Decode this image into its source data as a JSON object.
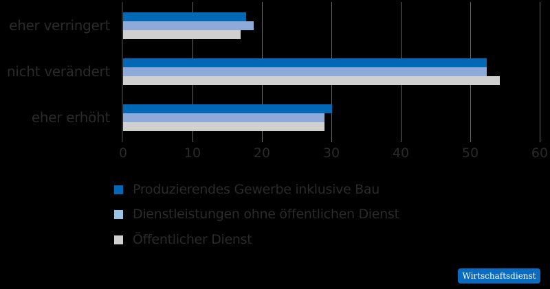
{
  "chart_data": {
    "type": "bar",
    "orientation": "horizontal",
    "categories": [
      "eher verringert",
      "nicht verändert",
      "eher erhöht"
    ],
    "series": [
      {
        "name": "Produzierendes Gewerbe inklusive Bau",
        "color": "#0068b4",
        "values": [
          17.7,
          52.4,
          30.1
        ]
      },
      {
        "name": "Dienstleistungen ohne öffentlichen Dienst",
        "color": "#8eaad9",
        "values": [
          18.8,
          52.4,
          29.0
        ]
      },
      {
        "name": "Öffentlicher Dienst",
        "color": "#d0d0d0",
        "values": [
          16.9,
          54.3,
          29.0
        ]
      }
    ],
    "xlim": [
      0,
      60
    ],
    "xticks": [
      "0",
      "10",
      "20",
      "30",
      "40",
      "50",
      "60"
    ],
    "grid": true,
    "legend_position": "bottom",
    "title": "",
    "xlabel": "",
    "ylabel": ""
  },
  "legend": [
    {
      "label": "Produzierendes Gewerbe inklusive Bau",
      "color": "#0068b4",
      "swatch_color": "#0068b4"
    },
    {
      "label": "Dienstleistungen ohne öffentlichen Dienst",
      "color": "#8eaad9",
      "swatch_color": "#9cc3e6"
    },
    {
      "label": "Öffentlicher Dienst",
      "color": "#d0d0d0",
      "swatch_color": "#d0d0d0"
    }
  ],
  "source_badge": "Wirtschaftsdienst"
}
